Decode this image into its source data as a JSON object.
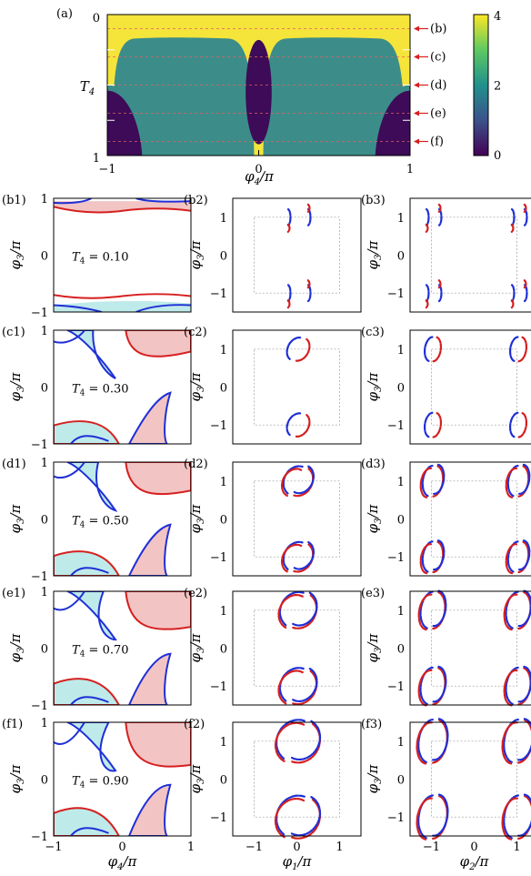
{
  "chart_data": [
    {
      "id": "a",
      "type": "heatmap",
      "panel_label": "(a)",
      "xlabel": "φ4/π",
      "ylabel": "T4",
      "xlim": [
        -1,
        1
      ],
      "ylim": [
        0,
        1
      ],
      "x_ticks": [
        "−1",
        "0",
        "1"
      ],
      "y_ticks": [
        "0",
        "1"
      ],
      "colorbar_ticks": [
        "4",
        "2",
        "0"
      ],
      "colorbar_range": [
        0,
        4
      ],
      "colors": {
        "high": "#f5e43a",
        "mid": "#3c8d8a",
        "low": "#3d0b57"
      },
      "regions": [
        {
          "value": 4,
          "desc": "yellow background"
        },
        {
          "value": 2,
          "desc": "teal dome regions"
        },
        {
          "value": 0,
          "desc": "purple lens at φ4=0 and corner caps at φ4=±1"
        }
      ],
      "markers": [
        {
          "label": "(b)",
          "T4": 0.1
        },
        {
          "label": "(c)",
          "T4": 0.3
        },
        {
          "label": "(d)",
          "T4": 0.5
        },
        {
          "label": "(e)",
          "T4": 0.7
        },
        {
          "label": "(f)",
          "T4": 0.9
        }
      ]
    },
    {
      "id": "col1",
      "type": "line",
      "xlabel": "φ4/π",
      "ylabel": "φ3/π",
      "xlim": [
        -1,
        1
      ],
      "ylim": [
        -1,
        1
      ],
      "x_ticks": [
        "−1",
        "0",
        "1"
      ],
      "y_ticks": [
        "1",
        "0",
        "−1"
      ],
      "panels": [
        {
          "label": "(b1)",
          "T4_text": "T4 = 0.10"
        },
        {
          "label": "(c1)",
          "T4_text": "T4 = 0.30"
        },
        {
          "label": "(d1)",
          "T4_text": "T4 = 0.50"
        },
        {
          "label": "(e1)",
          "T4_text": "T4 = 0.70"
        },
        {
          "label": "(f1)",
          "T4_text": "T4 = 0.90"
        }
      ]
    },
    {
      "id": "col2",
      "type": "scatter",
      "xlabel": "φ1/π",
      "ylabel": "φ3/π",
      "x_ticks": [
        "−1",
        "0",
        "1"
      ],
      "y_ticks": [
        "1",
        "0",
        "−1"
      ],
      "panels": [
        "(b2)",
        "(c2)",
        "(d2)",
        "(e2)",
        "(f2)"
      ]
    },
    {
      "id": "col3",
      "type": "scatter",
      "xlabel": "φ2/π",
      "ylabel": "φ3/π",
      "x_ticks": [
        "−1",
        "0",
        "1"
      ],
      "y_ticks": [
        "1",
        "0",
        "−1"
      ],
      "panels": [
        "(b3)",
        "(c3)",
        "(d3)",
        "(e3)",
        "(f3)"
      ]
    }
  ],
  "colors": {
    "red": "#d61f1f",
    "blue": "#1f2fd6",
    "pink": "#f2c4c4",
    "cyan": "#bfeaea",
    "grid": "#9a9a9a"
  }
}
